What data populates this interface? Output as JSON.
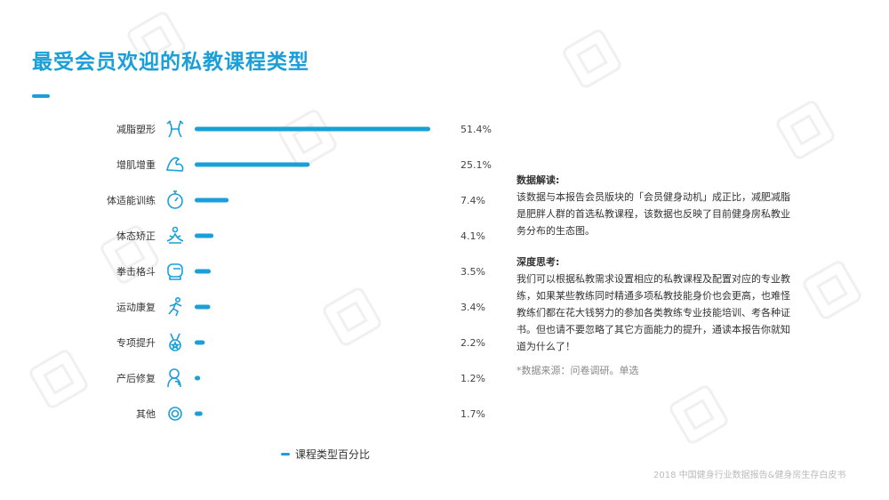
{
  "title": "最受会员欢迎的私教课程类型",
  "chart_data": {
    "type": "bar",
    "orientation": "horizontal",
    "categories": [
      "减脂塑形",
      "增肌增重",
      "体适能训练",
      "体态矫正",
      "拳击格斗",
      "运动康复",
      "专项提升",
      "产后修复",
      "其他"
    ],
    "series": [
      {
        "name": "课程类型百分比",
        "values": [
          51.4,
          25.1,
          7.4,
          4.1,
          3.5,
          3.4,
          2.2,
          1.2,
          1.7
        ]
      }
    ],
    "value_labels": [
      "51.4%",
      "25.1%",
      "7.4%",
      "4.1%",
      "3.5%",
      "3.4%",
      "2.2%",
      "1.2%",
      "1.7%"
    ],
    "icons": [
      "waist-icon",
      "muscle-arm-icon",
      "stopwatch-icon",
      "meditation-icon",
      "boxing-glove-icon",
      "running-icon",
      "medal-icon",
      "mother-baby-icon",
      "target-icon"
    ],
    "color": "#1a9fd9",
    "legend_position": "bottom",
    "grid": false,
    "xlim": [
      0,
      51.4
    ]
  },
  "legend": {
    "label": "课程类型百分比"
  },
  "side": {
    "section1_title": "数据解读:",
    "section1_body": "该数据与本报告会员版块的「会员健身动机」成正比，减肥减脂是肥胖人群的首选私教课程，该数据也反映了目前健身房私教业务分布的生态图。",
    "section2_title": "深度思考:",
    "section2_body": "我们可以根据私教需求设置相应的私教课程及配置对应的专业教练，如果某些教练同时精通多项私教技能身价也会更高，也难怪教练们都在花大钱努力的参加各类教练专业技能培训、考各种证书。但也请不要忽略了其它方面能力的提升，通读本报告你就知道为什么了！",
    "source": "*数据来源：问卷调研。单选"
  },
  "footer": "2018 中国健身行业数据报告&健身房生存白皮书",
  "accent_color": "#1a9fd9"
}
